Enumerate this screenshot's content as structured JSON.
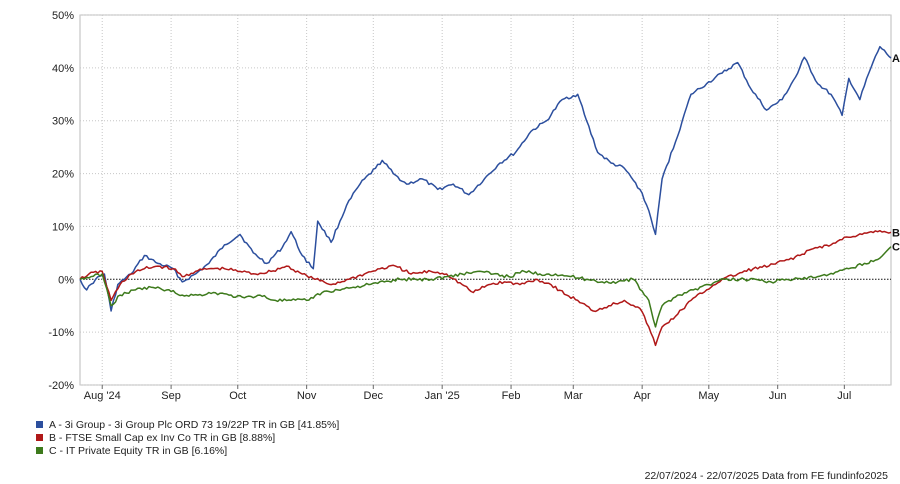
{
  "chart_data": {
    "type": "line",
    "yTicks": [
      "50%",
      "40%",
      "30%",
      "20%",
      "10%",
      "0%",
      "-10%",
      "-20%"
    ],
    "ylim": [
      -20,
      50
    ],
    "xTicks": [
      {
        "label": "Aug '24",
        "date": "2024-08-01"
      },
      {
        "label": "Sep",
        "date": "2024-09-01"
      },
      {
        "label": "Oct",
        "date": "2024-10-01"
      },
      {
        "label": "Nov",
        "date": "2024-11-01"
      },
      {
        "label": "Dec",
        "date": "2024-12-01"
      },
      {
        "label": "Jan '25",
        "date": "2025-01-01"
      },
      {
        "label": "Feb",
        "date": "2025-02-01"
      },
      {
        "label": "Mar",
        "date": "2025-03-01"
      },
      {
        "label": "Apr",
        "date": "2025-04-01"
      },
      {
        "label": "May",
        "date": "2025-05-01"
      },
      {
        "label": "Jun",
        "date": "2025-06-01"
      },
      {
        "label": "Jul",
        "date": "2025-07-01"
      }
    ],
    "xlim": [
      "2024-07-22",
      "2025-07-22"
    ],
    "grid": true,
    "zeroLine": "dashed",
    "series": [
      {
        "name": "A - 3i Group - 3i Group Plc ORD 73 19/22P TR in GB [41.85%]",
        "endLabel": "A",
        "color": "#2c4f9e",
        "points": [
          [
            "2024-07-22",
            0
          ],
          [
            "2024-07-25",
            -2
          ],
          [
            "2024-07-29",
            0
          ],
          [
            "2024-08-02",
            1
          ],
          [
            "2024-08-05",
            -6
          ],
          [
            "2024-08-08",
            -1
          ],
          [
            "2024-08-14",
            1
          ],
          [
            "2024-08-20",
            4.5
          ],
          [
            "2024-08-26",
            3
          ],
          [
            "2024-09-02",
            2
          ],
          [
            "2024-09-06",
            -0.5
          ],
          [
            "2024-09-12",
            1
          ],
          [
            "2024-09-18",
            3
          ],
          [
            "2024-09-25",
            6.5
          ],
          [
            "2024-10-02",
            8.5
          ],
          [
            "2024-10-08",
            5
          ],
          [
            "2024-10-14",
            3
          ],
          [
            "2024-10-21",
            6
          ],
          [
            "2024-10-25",
            9
          ],
          [
            "2024-10-30",
            4.5
          ],
          [
            "2024-11-04",
            2
          ],
          [
            "2024-11-06",
            11
          ],
          [
            "2024-11-12",
            7
          ],
          [
            "2024-11-19",
            14
          ],
          [
            "2024-11-25",
            18
          ],
          [
            "2024-12-02",
            21
          ],
          [
            "2024-12-05",
            22.5
          ],
          [
            "2024-12-10",
            20
          ],
          [
            "2024-12-16",
            18
          ],
          [
            "2024-12-23",
            19
          ],
          [
            "2024-12-30",
            17
          ],
          [
            "2025-01-06",
            18
          ],
          [
            "2025-01-13",
            16
          ],
          [
            "2025-01-20",
            19
          ],
          [
            "2025-01-27",
            22
          ],
          [
            "2025-02-03",
            24
          ],
          [
            "2025-02-10",
            28
          ],
          [
            "2025-02-17",
            30
          ],
          [
            "2025-02-24",
            34
          ],
          [
            "2025-03-03",
            35
          ],
          [
            "2025-03-07",
            30
          ],
          [
            "2025-03-12",
            24
          ],
          [
            "2025-03-18",
            22
          ],
          [
            "2025-03-24",
            21
          ],
          [
            "2025-03-31",
            17
          ],
          [
            "2025-04-04",
            13
          ],
          [
            "2025-04-07",
            8.5
          ],
          [
            "2025-04-10",
            19
          ],
          [
            "2025-04-16",
            26
          ],
          [
            "2025-04-23",
            35
          ],
          [
            "2025-04-30",
            37
          ],
          [
            "2025-05-07",
            39
          ],
          [
            "2025-05-14",
            41
          ],
          [
            "2025-05-20",
            36
          ],
          [
            "2025-05-27",
            32
          ],
          [
            "2025-06-03",
            34
          ],
          [
            "2025-06-10",
            39
          ],
          [
            "2025-06-13",
            42
          ],
          [
            "2025-06-19",
            37
          ],
          [
            "2025-06-25",
            35
          ],
          [
            "2025-06-30",
            31
          ],
          [
            "2025-07-03",
            38
          ],
          [
            "2025-07-08",
            34
          ],
          [
            "2025-07-12",
            39
          ],
          [
            "2025-07-17",
            44
          ],
          [
            "2025-07-22",
            41.85
          ]
        ]
      },
      {
        "name": "B - FTSE Small Cap ex Inv Co TR in GB [8.88%]",
        "endLabel": "B",
        "color": "#b01818",
        "points": [
          [
            "2024-07-22",
            0
          ],
          [
            "2024-07-26",
            1
          ],
          [
            "2024-08-01",
            1.5
          ],
          [
            "2024-08-05",
            -4
          ],
          [
            "2024-08-09",
            -1
          ],
          [
            "2024-08-14",
            1
          ],
          [
            "2024-08-20",
            2
          ],
          [
            "2024-08-26",
            2.5
          ],
          [
            "2024-09-02",
            2
          ],
          [
            "2024-09-06",
            0.5
          ],
          [
            "2024-09-12",
            1.5
          ],
          [
            "2024-09-18",
            2
          ],
          [
            "2024-09-25",
            2
          ],
          [
            "2024-10-02",
            1.5
          ],
          [
            "2024-10-09",
            1
          ],
          [
            "2024-10-16",
            1.5
          ],
          [
            "2024-10-23",
            2.5
          ],
          [
            "2024-10-30",
            1
          ],
          [
            "2024-11-05",
            0
          ],
          [
            "2024-11-12",
            -1
          ],
          [
            "2024-11-20",
            0
          ],
          [
            "2024-11-27",
            1
          ],
          [
            "2024-12-04",
            2
          ],
          [
            "2024-12-11",
            2.5
          ],
          [
            "2024-12-18",
            1
          ],
          [
            "2024-12-27",
            1.5
          ],
          [
            "2025-01-03",
            1
          ],
          [
            "2025-01-10",
            -1
          ],
          [
            "2025-01-15",
            -2.5
          ],
          [
            "2025-01-22",
            -1
          ],
          [
            "2025-01-29",
            -0.5
          ],
          [
            "2025-02-05",
            -1
          ],
          [
            "2025-02-12",
            0
          ],
          [
            "2025-02-19",
            -1
          ],
          [
            "2025-02-26",
            -3
          ],
          [
            "2025-03-03",
            -4
          ],
          [
            "2025-03-10",
            -6
          ],
          [
            "2025-03-17",
            -5
          ],
          [
            "2025-03-24",
            -4
          ],
          [
            "2025-03-31",
            -5.5
          ],
          [
            "2025-04-04",
            -9
          ],
          [
            "2025-04-07",
            -12.5
          ],
          [
            "2025-04-10",
            -9
          ],
          [
            "2025-04-16",
            -7
          ],
          [
            "2025-04-23",
            -4
          ],
          [
            "2025-04-30",
            -2
          ],
          [
            "2025-05-07",
            0
          ],
          [
            "2025-05-14",
            1
          ],
          [
            "2025-05-21",
            2
          ],
          [
            "2025-05-28",
            2.5
          ],
          [
            "2025-06-04",
            3.5
          ],
          [
            "2025-06-11",
            4.5
          ],
          [
            "2025-06-18",
            6
          ],
          [
            "2025-06-25",
            6.5
          ],
          [
            "2025-07-02",
            8
          ],
          [
            "2025-07-09",
            8.5
          ],
          [
            "2025-07-16",
            9
          ],
          [
            "2025-07-22",
            8.88
          ]
        ]
      },
      {
        "name": "C - IT Private Equity TR in GB [6.16%]",
        "endLabel": "C",
        "color": "#3d7a1c",
        "points": [
          [
            "2024-07-22",
            0
          ],
          [
            "2024-07-27",
            0.5
          ],
          [
            "2024-08-01",
            1
          ],
          [
            "2024-08-05",
            -5
          ],
          [
            "2024-08-09",
            -3
          ],
          [
            "2024-08-16",
            -2
          ],
          [
            "2024-08-23",
            -1.5
          ],
          [
            "2024-08-30",
            -2
          ],
          [
            "2024-09-06",
            -3
          ],
          [
            "2024-09-13",
            -3
          ],
          [
            "2024-09-20",
            -2.5
          ],
          [
            "2024-09-27",
            -3
          ],
          [
            "2024-10-04",
            -3.5
          ],
          [
            "2024-10-11",
            -3
          ],
          [
            "2024-10-18",
            -4
          ],
          [
            "2024-10-25",
            -4
          ],
          [
            "2024-11-01",
            -4
          ],
          [
            "2024-11-08",
            -2.5
          ],
          [
            "2024-11-15",
            -2
          ],
          [
            "2024-11-22",
            -1.5
          ],
          [
            "2024-11-29",
            -1
          ],
          [
            "2024-12-06",
            -0.5
          ],
          [
            "2024-12-13",
            0
          ],
          [
            "2024-12-20",
            0
          ],
          [
            "2024-12-27",
            0
          ],
          [
            "2025-01-03",
            0.5
          ],
          [
            "2025-01-10",
            1
          ],
          [
            "2025-01-17",
            1.5
          ],
          [
            "2025-01-24",
            1
          ],
          [
            "2025-01-31",
            0.5
          ],
          [
            "2025-02-07",
            1.5
          ],
          [
            "2025-02-14",
            1
          ],
          [
            "2025-02-21",
            1
          ],
          [
            "2025-02-28",
            0.5
          ],
          [
            "2025-03-07",
            0
          ],
          [
            "2025-03-14",
            -0.5
          ],
          [
            "2025-03-21",
            -0.5
          ],
          [
            "2025-03-28",
            0
          ],
          [
            "2025-04-04",
            -4
          ],
          [
            "2025-04-07",
            -9
          ],
          [
            "2025-04-10",
            -5
          ],
          [
            "2025-04-17",
            -3
          ],
          [
            "2025-04-24",
            -2
          ],
          [
            "2025-05-01",
            -1
          ],
          [
            "2025-05-08",
            0
          ],
          [
            "2025-05-15",
            0
          ],
          [
            "2025-05-22",
            0
          ],
          [
            "2025-05-29",
            -0.5
          ],
          [
            "2025-06-05",
            0
          ],
          [
            "2025-06-12",
            0
          ],
          [
            "2025-06-19",
            0.5
          ],
          [
            "2025-06-26",
            1
          ],
          [
            "2025-07-03",
            2
          ],
          [
            "2025-07-10",
            3
          ],
          [
            "2025-07-17",
            4
          ],
          [
            "2025-07-22",
            6.16
          ]
        ]
      }
    ]
  },
  "footer": "22/07/2024 - 22/07/2025 Data from FE fundinfo2025"
}
